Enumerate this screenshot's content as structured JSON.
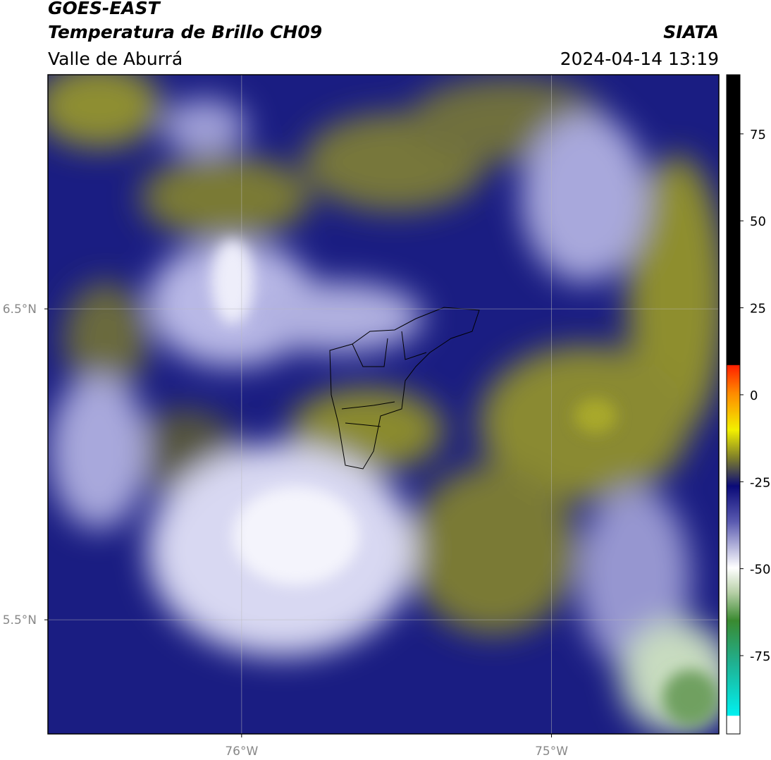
{
  "header": {
    "title": "GOES-EAST",
    "subtitle": "Temperatura de Brillo CH09",
    "region": "Valle de Aburrá",
    "source": "SIATA",
    "timestamp": "2024-04-14 13:19"
  },
  "map": {
    "xlim": [
      -76.625,
      -74.46
    ],
    "ylim": [
      5.133,
      7.253
    ],
    "xticks": [
      {
        "value": -76,
        "label": "76°W"
      },
      {
        "value": -75,
        "label": "75°W"
      }
    ],
    "yticks": [
      {
        "value": 5.5,
        "label": "5.5°N"
      },
      {
        "value": 6.5,
        "label": "6.5°N"
      }
    ]
  },
  "colorbar": {
    "lim": [
      -97.5,
      92
    ],
    "ticks": [
      -75,
      -50,
      -25,
      0,
      25,
      50,
      75
    ]
  }
}
